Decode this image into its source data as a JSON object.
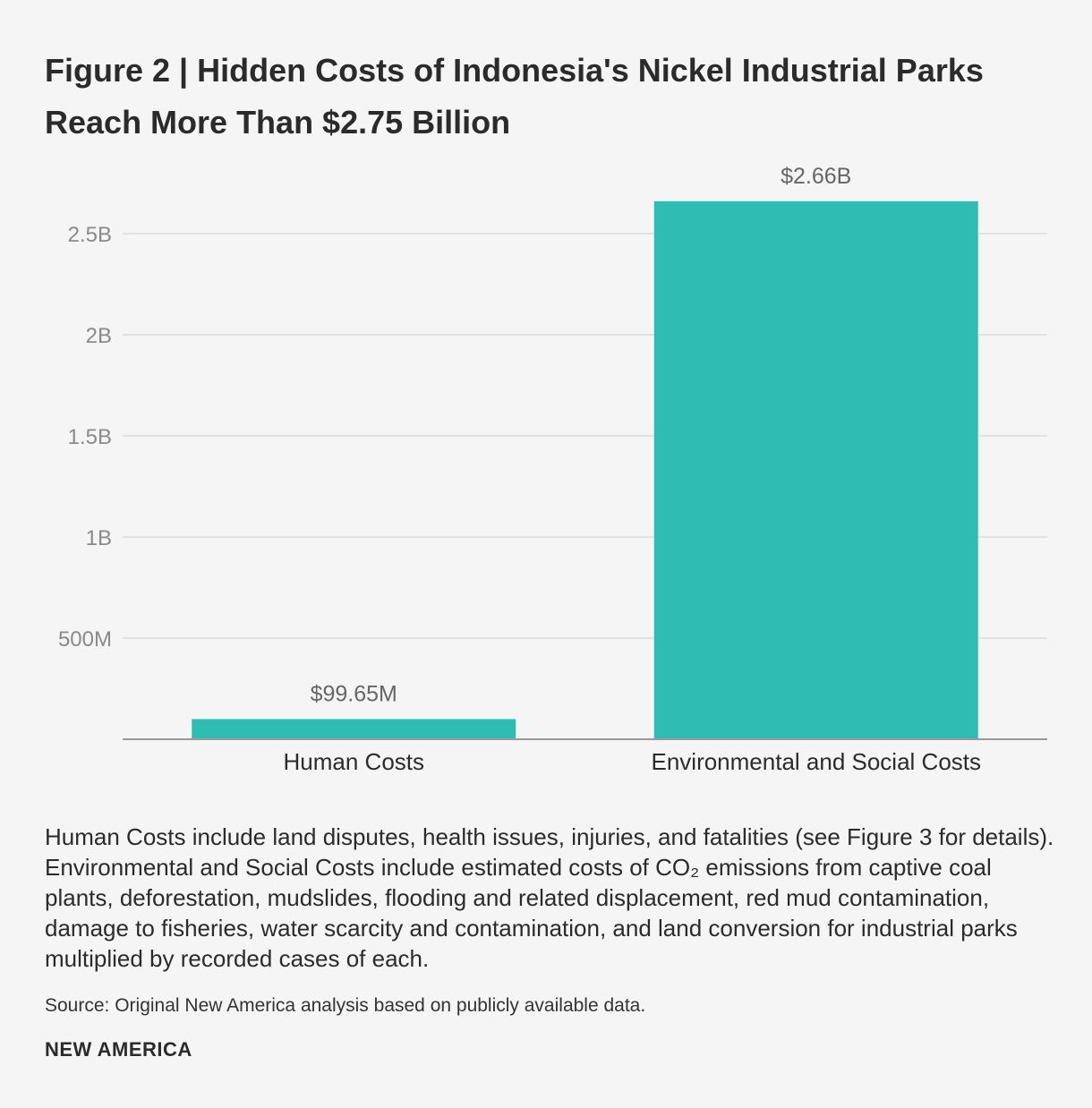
{
  "figure": {
    "title_line1": "Figure 2 | Hidden Costs of Indonesia's Nickel Industrial Parks",
    "title_line2": "Reach More Than $2.75 Billion",
    "note": "Human Costs include land disputes, health issues, injuries, and fatalities (see Figure 3 for details). Environmental and Social Costs include estimated costs of CO₂ emissions from captive coal plants, deforestation, mudslides, flooding and related displacement, red mud contamination, damage to fisheries, water scarcity and contamination, and land conversion for industrial parks multiplied by recorded cases of each.",
    "source": "Source: Original New America analysis based on publicly available data.",
    "brand": "NEW AMERICA"
  },
  "chart_data": {
    "type": "bar",
    "title": "Figure 2 | Hidden Costs of Indonesia's Nickel Industrial Parks Reach More Than $2.75 Billion",
    "xlabel": "",
    "ylabel": "",
    "categories": [
      "Human Costs",
      "Environmental and Social Costs"
    ],
    "values": [
      99650000,
      2660000000
    ],
    "data_labels": [
      "$99.65M",
      "$2.66B"
    ],
    "ylim": [
      0,
      2800000000
    ],
    "yticks": [
      500000000,
      1000000000,
      1500000000,
      2000000000,
      2500000000
    ],
    "ytick_labels": [
      "500M",
      "1B",
      "1.5B",
      "2B",
      "2.5B"
    ],
    "grid": true,
    "bar_color": "#2fbcb3"
  }
}
